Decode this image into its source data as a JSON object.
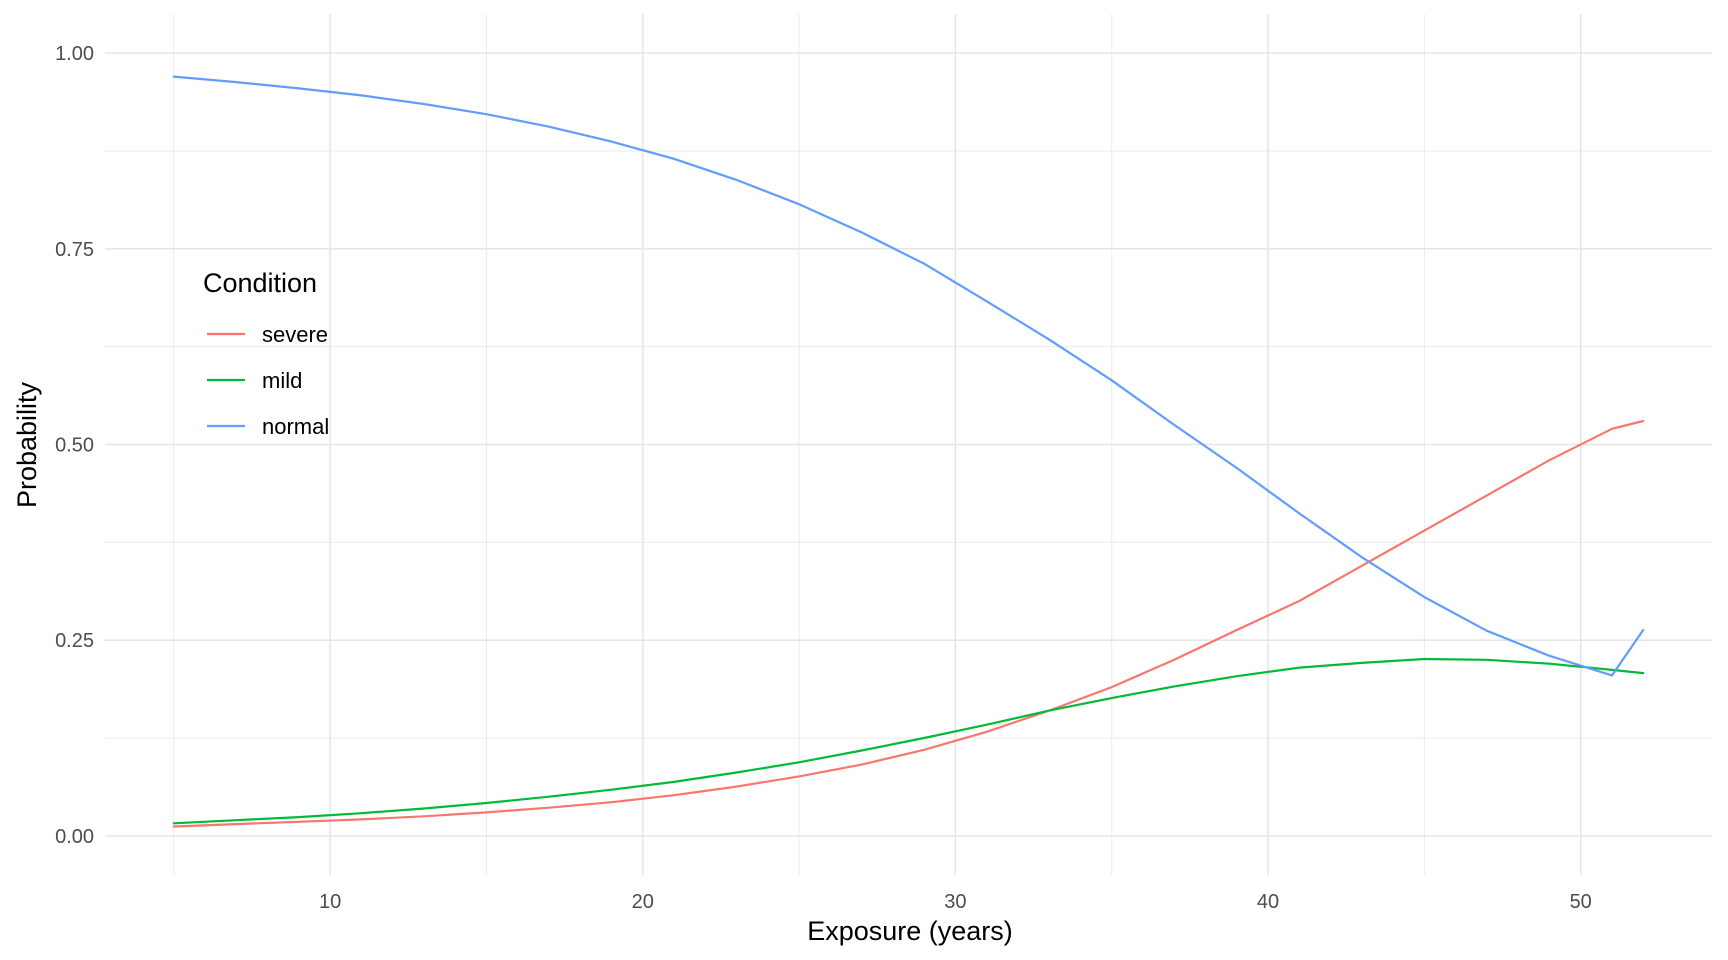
{
  "chart_data": {
    "type": "line",
    "xlabel": "Exposure (years)",
    "ylabel": "Probability",
    "xlim": [
      2.8,
      54.2
    ],
    "ylim": [
      -0.05,
      1.05
    ],
    "x_ticks": [
      10,
      20,
      30,
      40,
      50
    ],
    "x_tick_labels": [
      "10",
      "20",
      "30",
      "40",
      "50"
    ],
    "y_ticks": [
      0,
      0.25,
      0.5,
      0.75,
      1.0
    ],
    "y_tick_labels": [
      "0.00",
      "0.25",
      "0.50",
      "0.75",
      "1.00"
    ],
    "grid": true,
    "legend": {
      "title": "Condition",
      "placement": "inside-left"
    },
    "x": [
      5,
      7,
      9,
      11,
      13,
      15,
      17,
      19,
      21,
      23,
      25,
      27,
      29,
      31,
      33,
      35,
      37,
      39,
      41,
      43,
      45,
      47,
      49,
      51,
      52
    ],
    "series": [
      {
        "name": "severe",
        "color": "#F8766D",
        "values": [
          0.012,
          0.015,
          0.018,
          0.021,
          0.025,
          0.03,
          0.036,
          0.043,
          0.052,
          0.063,
          0.076,
          0.091,
          0.11,
          0.133,
          0.16,
          0.19,
          0.225,
          0.263,
          0.3,
          0.345,
          0.39,
          0.435,
          0.48,
          0.52,
          0.53
        ]
      },
      {
        "name": "mild",
        "color": "#00BA38",
        "values": [
          0.016,
          0.02,
          0.024,
          0.029,
          0.035,
          0.042,
          0.05,
          0.059,
          0.069,
          0.081,
          0.094,
          0.109,
          0.125,
          0.142,
          0.16,
          0.176,
          0.191,
          0.204,
          0.215,
          0.221,
          0.226,
          0.225,
          0.22,
          0.212,
          0.208
        ]
      },
      {
        "name": "normal",
        "color": "#619CFF",
        "values": [
          0.97,
          0.963,
          0.955,
          0.946,
          0.935,
          0.922,
          0.906,
          0.887,
          0.865,
          0.838,
          0.807,
          0.771,
          0.731,
          0.683,
          0.634,
          0.582,
          0.525,
          0.47,
          0.412,
          0.356,
          0.305,
          0.262,
          0.23,
          0.205,
          0.263
        ]
      }
    ]
  }
}
